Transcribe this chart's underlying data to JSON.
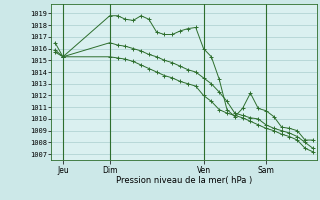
{
  "background_color": "#cce8e8",
  "plot_bg_color": "#daf0f0",
  "grid_color": "#aacece",
  "line_color": "#2d6e2d",
  "marker_color": "#2d6e2d",
  "ylabel_ticks": [
    1007,
    1008,
    1009,
    1010,
    1011,
    1012,
    1013,
    1014,
    1015,
    1016,
    1017,
    1018,
    1019
  ],
  "ylim": [
    1006.5,
    1019.8
  ],
  "xlim": [
    -0.5,
    33.5
  ],
  "xlabel": "Pression niveau de la mer( hPa )",
  "day_labels": [
    "Jeu",
    "Dim",
    "Ven",
    "Sam"
  ],
  "day_positions": [
    1,
    7,
    19,
    27
  ],
  "series": [
    {
      "x": [
        0,
        1,
        7,
        8,
        9,
        10,
        11,
        12,
        13,
        14,
        15,
        16,
        17,
        18,
        19,
        20,
        21,
        22,
        23,
        24,
        25,
        26,
        27,
        28,
        29,
        30,
        31,
        32,
        33
      ],
      "y": [
        1016.5,
        1015.3,
        1018.8,
        1018.8,
        1018.5,
        1018.4,
        1018.8,
        1018.5,
        1017.4,
        1017.2,
        1017.2,
        1017.5,
        1017.7,
        1017.8,
        1016.0,
        1015.3,
        1013.4,
        1010.8,
        1010.2,
        1010.9,
        1012.2,
        1010.9,
        1010.7,
        1010.2,
        1009.3,
        1009.2,
        1009.0,
        1008.2,
        1008.2
      ]
    },
    {
      "x": [
        0,
        1,
        7,
        8,
        9,
        10,
        11,
        12,
        13,
        14,
        15,
        16,
        17,
        18,
        19,
        20,
        21,
        22,
        23,
        24,
        25,
        26,
        27,
        28,
        29,
        30,
        31,
        32,
        33
      ],
      "y": [
        1015.7,
        1015.3,
        1015.3,
        1015.2,
        1015.1,
        1014.9,
        1014.6,
        1014.3,
        1014.0,
        1013.7,
        1013.5,
        1013.2,
        1013.0,
        1012.8,
        1012.0,
        1011.5,
        1010.8,
        1010.5,
        1010.3,
        1010.1,
        1009.8,
        1009.5,
        1009.2,
        1009.0,
        1008.7,
        1008.5,
        1008.2,
        1007.5,
        1007.2
      ]
    },
    {
      "x": [
        0,
        1,
        7,
        8,
        9,
        10,
        11,
        12,
        13,
        14,
        15,
        16,
        17,
        18,
        19,
        20,
        21,
        22,
        23,
        24,
        25,
        26,
        27,
        28,
        29,
        30,
        31,
        32,
        33
      ],
      "y": [
        1015.9,
        1015.3,
        1016.5,
        1016.3,
        1016.2,
        1016.0,
        1015.8,
        1015.5,
        1015.3,
        1015.0,
        1014.8,
        1014.5,
        1014.2,
        1014.0,
        1013.5,
        1013.0,
        1012.3,
        1011.5,
        1010.5,
        1010.3,
        1010.1,
        1010.0,
        1009.5,
        1009.2,
        1009.0,
        1008.8,
        1008.5,
        1008.0,
        1007.5
      ]
    }
  ]
}
